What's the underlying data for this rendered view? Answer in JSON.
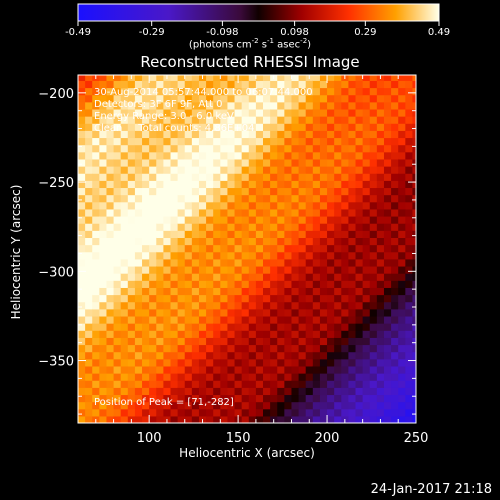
{
  "chart_data": {
    "type": "heatmap",
    "title": "Reconstructed RHESSI Image",
    "xlabel": "Heliocentric X (arcsec)",
    "ylabel": "Heliocentric Y (arcsec)",
    "xlim": [
      60,
      250
    ],
    "ylim": [
      -385,
      -190
    ],
    "xticks": [
      100,
      150,
      200,
      250
    ],
    "yticks": [
      -200,
      -250,
      -300,
      -350
    ],
    "colorbar": {
      "ticks": [
        "-0.49",
        "-0.29",
        "-0.098",
        "0.098",
        "0.29",
        "0.49"
      ],
      "min": -0.49,
      "max": 0.49,
      "units_text": "(photons cm",
      "units_exp1": "-2",
      "units_mid": " s",
      "units_exp2": "-1",
      "units_mid2": " asec",
      "units_exp3": "-2",
      "units_end": ")"
    },
    "annotations": {
      "line1": "30-Aug-2014 05:57:44.000 to 06:07:44.000",
      "line2": "Detectors: 3F 6F 9F, Att 0",
      "line3": "Energy Range: 3.0 - 6.0 keV",
      "line4": "Clean     Total counts: 4.86E+04",
      "peak": "Position of Peak = [71,-282]"
    },
    "peak": [
      71,
      -282
    ],
    "peak_value": 0.49
  },
  "footer": {
    "timestamp": "24-Jan-2017 21:18"
  }
}
